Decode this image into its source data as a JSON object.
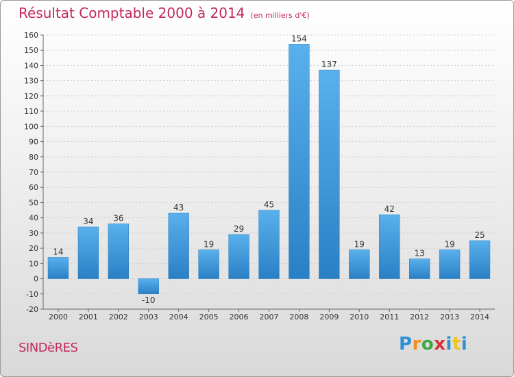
{
  "header": {
    "title": "Résultat Comptable 2000 à 2014",
    "subtitle": "(en milliers d'€)"
  },
  "footer": {
    "commune": "SINDèRES",
    "logo": {
      "letters": [
        "P",
        "r",
        "o",
        "x",
        "i",
        "t",
        "i"
      ],
      "colors": [
        "#2f8fd4",
        "#f28c1e",
        "#3aa845",
        "#d6323a",
        "#2f8fd4",
        "#f2c21e",
        "#2f8fd4"
      ]
    }
  },
  "chart_data": {
    "type": "bar",
    "categories": [
      "2000",
      "2001",
      "2002",
      "2003",
      "2004",
      "2005",
      "2006",
      "2007",
      "2008",
      "2009",
      "2010",
      "2011",
      "2012",
      "2013",
      "2014"
    ],
    "values": [
      14,
      34,
      36,
      -10,
      43,
      19,
      29,
      45,
      154,
      137,
      19,
      42,
      13,
      19,
      25
    ],
    "data_labels": [
      "14",
      "34",
      "36",
      "-10",
      "43",
      "19",
      "29",
      "45",
      "154",
      "137",
      "19",
      "42",
      "13",
      "19",
      "25"
    ],
    "ylim": [
      -20,
      160
    ],
    "y_ticks": [
      -20,
      -10,
      0,
      10,
      20,
      30,
      40,
      50,
      60,
      70,
      80,
      90,
      100,
      110,
      120,
      130,
      140,
      150,
      160
    ],
    "grid": true,
    "bar_color_light": "#5ab0ec",
    "bar_color_dark": "#2a80c4",
    "xlabel": "",
    "ylabel": ""
  }
}
